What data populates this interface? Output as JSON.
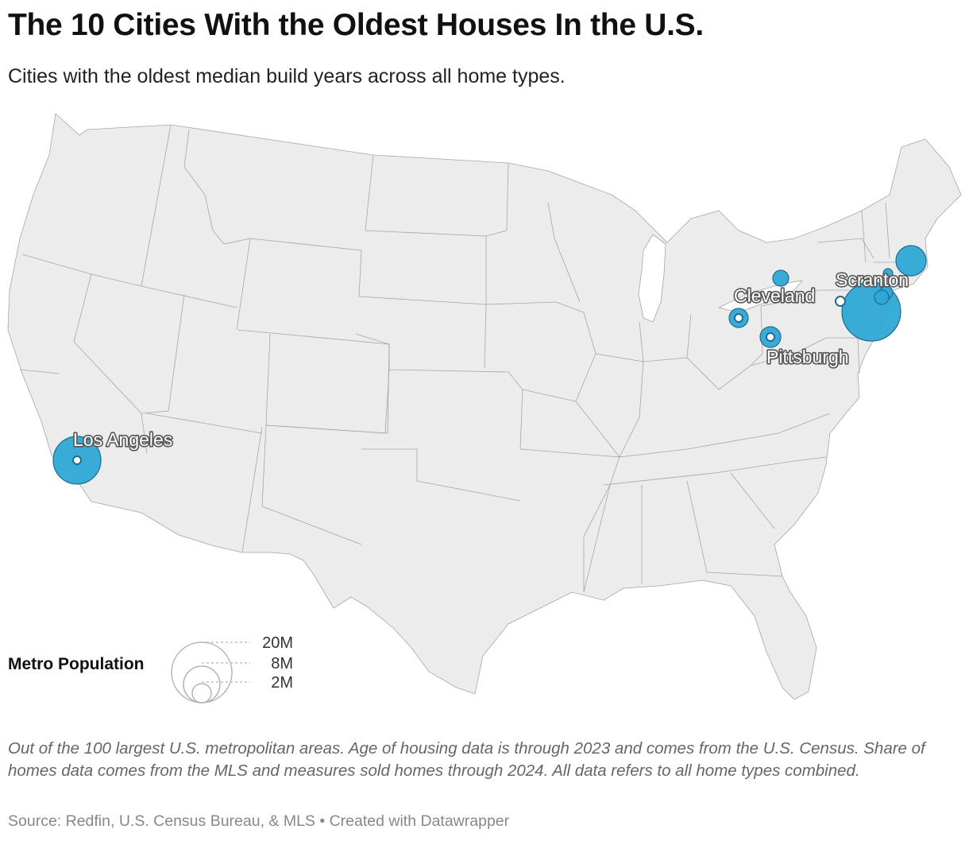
{
  "header": {
    "title": "The 10 Cities With the Oldest Houses In the U.S.",
    "subtitle": "Cities with the oldest median build years across all home types."
  },
  "map": {
    "region": "Contiguous United States",
    "bubble_color": "#2ea8d6",
    "bubble_stroke": "#1f6c8a",
    "land_color": "#ececec",
    "labels": {
      "los_angeles": "Los Angeles",
      "cleveland": "Cleveland",
      "pittsburgh": "Pittsburgh",
      "scranton": "Scranton"
    }
  },
  "legend": {
    "title": "Metro Population",
    "values": [
      "20M",
      "8M",
      "2M"
    ]
  },
  "footer": {
    "notes": "Out of the 100 largest U.S. metropolitan areas. Age of housing data is through 2023 and comes from the U.S. Census. Share of homes data comes from the MLS and measures sold homes through 2024. All data refers to all home types combined.",
    "source": "Source: Redfin, U.S. Census Bureau, & MLS • Created with Datawrapper"
  }
}
